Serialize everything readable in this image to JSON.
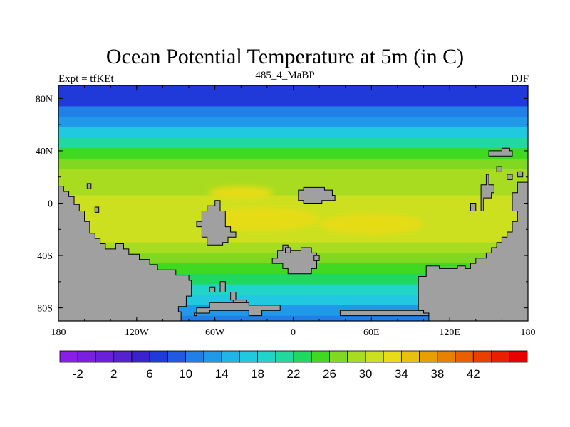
{
  "chart_data": {
    "type": "heatmap",
    "title": "Ocean Potential Temperature at 5m (in C)",
    "left_label": "Expt = tfKEt",
    "center_label": "485_4_MaBP",
    "right_label": "DJF",
    "x_ticks": [
      "180",
      "120W",
      "60W",
      "0",
      "60E",
      "120E",
      "180"
    ],
    "x_tick_values": [
      -180,
      -120,
      -60,
      0,
      60,
      120,
      180
    ],
    "y_ticks": [
      "80N",
      "40N",
      "0",
      "40S",
      "80S"
    ],
    "y_tick_values": [
      80,
      40,
      0,
      -40,
      -80
    ],
    "xlim": [
      -180,
      180
    ],
    "ylim": [
      -90,
      90
    ],
    "land_color": "#a0a0a0",
    "colorbar": {
      "colors": [
        "#8a1ee8",
        "#7a1ee0",
        "#6a20d8",
        "#5522d0",
        "#3a22cc",
        "#1f3ad8",
        "#1f5ae0",
        "#2080e8",
        "#209ae8",
        "#20b4e8",
        "#20c8e0",
        "#20d4c8",
        "#20d8a0",
        "#20d860",
        "#40d820",
        "#80d820",
        "#a8dc20",
        "#cce020",
        "#e6dc18",
        "#e8c010",
        "#e8a000",
        "#e88000",
        "#e86000",
        "#e84000",
        "#e82000",
        "#e80000"
      ],
      "labels": [
        "-2",
        "2",
        "6",
        "10",
        "14",
        "18",
        "22",
        "26",
        "30",
        "34",
        "38",
        "42"
      ]
    },
    "bands": [
      {
        "lat": 90,
        "value": 6
      },
      {
        "lat": 82,
        "value": 7
      },
      {
        "lat": 74,
        "value": 10
      },
      {
        "lat": 66,
        "value": 13
      },
      {
        "lat": 58,
        "value": 16
      },
      {
        "lat": 50,
        "value": 20
      },
      {
        "lat": 42,
        "value": 24
      },
      {
        "lat": 34,
        "value": 26.5
      },
      {
        "lat": 26,
        "value": 28.5
      },
      {
        "lat": 16,
        "value": 29.8
      },
      {
        "lat": 6,
        "value": 31
      },
      {
        "lat": -4,
        "value": 31.5
      },
      {
        "lat": -14,
        "value": 30.5
      },
      {
        "lat": -22,
        "value": 30
      },
      {
        "lat": -30,
        "value": 29
      },
      {
        "lat": -38,
        "value": 27.5
      },
      {
        "lat": -46,
        "value": 25.5
      },
      {
        "lat": -54,
        "value": 22
      },
      {
        "lat": -62,
        "value": 19
      },
      {
        "lat": -70,
        "value": 16
      },
      {
        "lat": -78,
        "value": 13
      },
      {
        "lat": -86,
        "value": 10
      },
      {
        "lat": -90,
        "value": 9
      }
    ],
    "warm_patches": [
      {
        "lon": -40,
        "lat": 8,
        "rlon": 25,
        "rlat": 5,
        "value": 33
      },
      {
        "lon": -25,
        "lat": -12,
        "rlon": 45,
        "rlat": 9,
        "value": 32
      },
      {
        "lon": 60,
        "lat": -16,
        "rlon": 40,
        "rlat": 8,
        "value": 32
      }
    ],
    "land": [
      [
        [
          -180,
          -90
        ],
        [
          -180,
          13
        ],
        [
          -176,
          13
        ],
        [
          -176,
          9
        ],
        [
          -172,
          9
        ],
        [
          -172,
          5
        ],
        [
          -168,
          5
        ],
        [
          -168,
          -1
        ],
        [
          -164,
          -1
        ],
        [
          -164,
          -6
        ],
        [
          -160,
          -6
        ],
        [
          -160,
          -14
        ],
        [
          -156,
          -14
        ],
        [
          -156,
          -23
        ],
        [
          -152,
          -23
        ],
        [
          -152,
          -27
        ],
        [
          -148,
          -27
        ],
        [
          -148,
          -31
        ],
        [
          -144,
          -31
        ],
        [
          -144,
          -35
        ],
        [
          -136,
          -35
        ],
        [
          -136,
          -31
        ],
        [
          -130,
          -31
        ],
        [
          -130,
          -35
        ],
        [
          -126,
          -35
        ],
        [
          -126,
          -39
        ],
        [
          -118,
          -39
        ],
        [
          -118,
          -43
        ],
        [
          -110,
          -43
        ],
        [
          -110,
          -47
        ],
        [
          -104,
          -47
        ],
        [
          -104,
          -51
        ],
        [
          -90,
          -51
        ],
        [
          -90,
          -55
        ],
        [
          -80,
          -55
        ],
        [
          -80,
          -59
        ],
        [
          -78,
          -59
        ],
        [
          -78,
          -71
        ],
        [
          -82,
          -71
        ],
        [
          -82,
          -79
        ],
        [
          -88,
          -79
        ],
        [
          -88,
          -83
        ],
        [
          -86,
          -83
        ],
        [
          -86,
          -90
        ]
      ],
      [
        [
          -158,
          15
        ],
        [
          -155,
          15
        ],
        [
          -155,
          11
        ],
        [
          -158,
          11
        ]
      ],
      [
        [
          -152,
          -3
        ],
        [
          -149,
          -3
        ],
        [
          -149,
          -7
        ],
        [
          -152,
          -7
        ]
      ],
      [
        [
          -64,
          -2
        ],
        [
          -60,
          -2
        ],
        [
          -60,
          2
        ],
        [
          -56,
          2
        ],
        [
          -56,
          -6
        ],
        [
          -52,
          -6
        ],
        [
          -52,
          -18
        ],
        [
          -48,
          -18
        ],
        [
          -48,
          -22
        ],
        [
          -44,
          -22
        ],
        [
          -44,
          -26
        ],
        [
          -50,
          -26
        ],
        [
          -50,
          -30
        ],
        [
          -54,
          -30
        ],
        [
          -54,
          -32
        ],
        [
          -66,
          -32
        ],
        [
          -66,
          -26
        ],
        [
          -70,
          -26
        ],
        [
          -70,
          -18
        ],
        [
          -74,
          -18
        ],
        [
          -74,
          -14
        ],
        [
          -70,
          -14
        ],
        [
          -70,
          -6
        ],
        [
          -66,
          -6
        ],
        [
          -66,
          -2
        ]
      ],
      [
        [
          -76,
          -84
        ],
        [
          -64,
          -84
        ],
        [
          -64,
          -82
        ],
        [
          -34,
          -82
        ],
        [
          -34,
          -86
        ],
        [
          -24,
          -86
        ],
        [
          -24,
          -82
        ],
        [
          -10,
          -82
        ],
        [
          -10,
          -78
        ],
        [
          -34,
          -78
        ],
        [
          -34,
          -76
        ],
        [
          -64,
          -76
        ],
        [
          -64,
          -80
        ],
        [
          -74,
          -80
        ],
        [
          -74,
          -86
        ],
        [
          -76,
          -86
        ]
      ],
      [
        [
          -64,
          -64
        ],
        [
          -60,
          -64
        ],
        [
          -60,
          -68
        ],
        [
          -64,
          -68
        ]
      ],
      [
        [
          -56,
          -60
        ],
        [
          -52,
          -60
        ],
        [
          -52,
          -68
        ],
        [
          -56,
          -68
        ]
      ],
      [
        [
          -48,
          -68
        ],
        [
          -44,
          -68
        ],
        [
          -44,
          -74
        ],
        [
          -48,
          -74
        ]
      ],
      [
        [
          -46,
          -76
        ],
        [
          -36,
          -76
        ],
        [
          -36,
          -74
        ],
        [
          -46,
          -74
        ]
      ],
      [
        [
          4,
          10
        ],
        [
          8,
          10
        ],
        [
          8,
          12
        ],
        [
          24,
          12
        ],
        [
          24,
          10
        ],
        [
          30,
          10
        ],
        [
          30,
          6
        ],
        [
          32,
          6
        ],
        [
          32,
          2
        ],
        [
          22,
          2
        ],
        [
          22,
          0
        ],
        [
          8,
          0
        ],
        [
          8,
          2
        ],
        [
          4,
          2
        ]
      ],
      [
        [
          -8,
          -32
        ],
        [
          -4,
          -32
        ],
        [
          -4,
          -36
        ],
        [
          6,
          -36
        ],
        [
          6,
          -34
        ],
        [
          14,
          -34
        ],
        [
          14,
          -38
        ],
        [
          18,
          -38
        ],
        [
          18,
          -50
        ],
        [
          14,
          -50
        ],
        [
          14,
          -54
        ],
        [
          -4,
          -54
        ],
        [
          -4,
          -50
        ],
        [
          -8,
          -50
        ],
        [
          -8,
          -46
        ],
        [
          -16,
          -46
        ],
        [
          -16,
          -42
        ],
        [
          -12,
          -42
        ],
        [
          -12,
          -36
        ],
        [
          -8,
          -36
        ]
      ],
      [
        [
          -6,
          -34
        ],
        [
          -2,
          -34
        ],
        [
          -2,
          -38
        ],
        [
          -6,
          -38
        ]
      ],
      [
        [
          16,
          -40
        ],
        [
          20,
          -40
        ],
        [
          20,
          -44
        ],
        [
          16,
          -44
        ]
      ],
      [
        [
          36,
          -84
        ],
        [
          36,
          -82
        ],
        [
          100,
          -82
        ],
        [
          100,
          -84
        ],
        [
          104,
          -84
        ],
        [
          104,
          -86
        ],
        [
          36,
          -86
        ]
      ],
      [
        [
          96,
          -82
        ],
        [
          96,
          -56
        ],
        [
          102,
          -56
        ],
        [
          102,
          -48
        ],
        [
          112,
          -48
        ],
        [
          112,
          -50
        ],
        [
          126,
          -50
        ],
        [
          126,
          -48
        ],
        [
          132,
          -48
        ],
        [
          132,
          -50
        ],
        [
          136,
          -50
        ],
        [
          136,
          -46
        ],
        [
          140,
          -46
        ],
        [
          140,
          -42
        ],
        [
          148,
          -42
        ],
        [
          148,
          -38
        ],
        [
          152,
          -38
        ],
        [
          152,
          -34
        ],
        [
          156,
          -34
        ],
        [
          156,
          -30
        ],
        [
          160,
          -30
        ],
        [
          160,
          -26
        ],
        [
          164,
          -26
        ],
        [
          164,
          -22
        ],
        [
          168,
          -22
        ],
        [
          168,
          -14
        ],
        [
          172,
          -14
        ],
        [
          172,
          -6
        ],
        [
          168,
          -6
        ],
        [
          168,
          8
        ],
        [
          172,
          8
        ],
        [
          172,
          16
        ],
        [
          178,
          16
        ],
        [
          180,
          16
        ],
        [
          180,
          -90
        ],
        [
          104,
          -90
        ],
        [
          104,
          -84
        ],
        [
          100,
          -84
        ],
        [
          100,
          -82
        ]
      ],
      [
        [
          148,
          22
        ],
        [
          150,
          22
        ],
        [
          150,
          14
        ],
        [
          154,
          14
        ],
        [
          154,
          8
        ],
        [
          152,
          8
        ],
        [
          152,
          4
        ],
        [
          146,
          4
        ],
        [
          146,
          -6
        ],
        [
          144,
          -6
        ],
        [
          144,
          14
        ],
        [
          148,
          14
        ]
      ],
      [
        [
          136,
          0
        ],
        [
          140,
          0
        ],
        [
          140,
          -6
        ],
        [
          136,
          -6
        ]
      ],
      [
        [
          150,
          40
        ],
        [
          160,
          40
        ],
        [
          160,
          42
        ],
        [
          166,
          42
        ],
        [
          166,
          40
        ],
        [
          168,
          40
        ],
        [
          168,
          36
        ],
        [
          150,
          36
        ]
      ],
      [
        [
          156,
          24
        ],
        [
          160,
          24
        ],
        [
          160,
          28
        ],
        [
          156,
          28
        ]
      ],
      [
        [
          164,
          18
        ],
        [
          168,
          18
        ],
        [
          168,
          22
        ],
        [
          164,
          22
        ]
      ],
      [
        [
          172,
          20
        ],
        [
          176,
          20
        ],
        [
          176,
          24
        ],
        [
          172,
          24
        ]
      ]
    ]
  }
}
